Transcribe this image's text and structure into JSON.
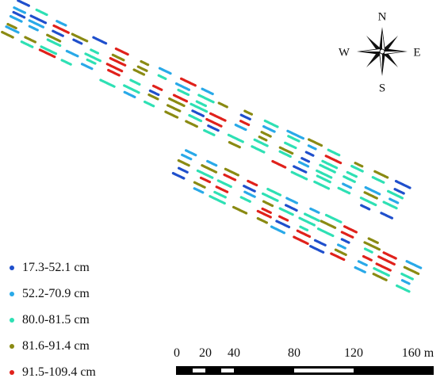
{
  "legend": {
    "items": [
      {
        "label": "17.3-52.1 cm",
        "color": "#1f4fcc"
      },
      {
        "label": "52.2-70.9 cm",
        "color": "#29a9e8"
      },
      {
        "label": "80.0-81.5 cm",
        "color": "#2ee0b4"
      },
      {
        "label": "81.6-91.4 cm",
        "color": "#8a8a12"
      },
      {
        "label": "91.5-109.4 cm",
        "color": "#e0211b"
      }
    ]
  },
  "scale_bar": {
    "ticks": [
      "0",
      "20",
      "40",
      "80",
      "120"
    ],
    "end_label": "160 m"
  },
  "compass": {
    "north": "N",
    "south": "S",
    "east": "E",
    "west": "W"
  }
}
